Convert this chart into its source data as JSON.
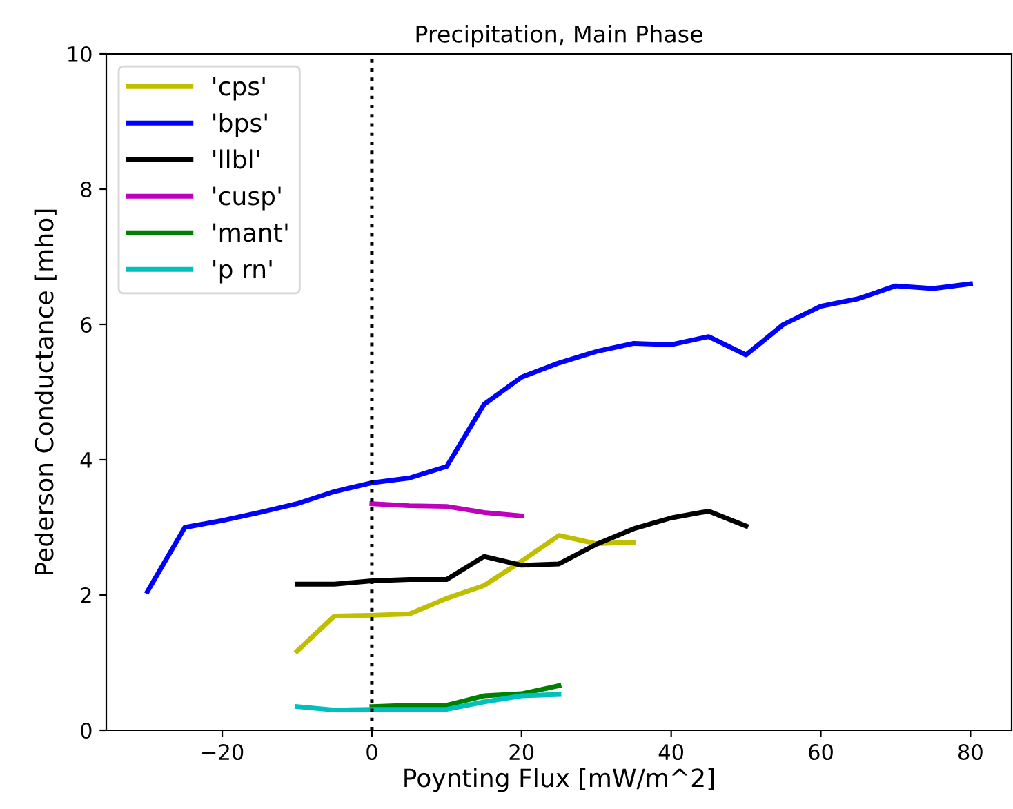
{
  "chart_data": {
    "type": "line",
    "title": "Precipitation, Main Phase",
    "xlabel": "Poynting Flux [mW/m^2]",
    "ylabel": "Pederson Conductance [mho]",
    "xlim": [
      -35.5,
      85.5
    ],
    "ylim": [
      0,
      10
    ],
    "xticks": [
      {
        "value": -20,
        "label": "−20"
      },
      0,
      20,
      40,
      60,
      80
    ],
    "yticks": [
      0,
      2,
      4,
      6,
      8,
      10
    ],
    "grid": false,
    "legend": "top left",
    "line_style": "solid",
    "marker": "none",
    "ref_lines": [
      {
        "axis": "x",
        "value": 0,
        "color": "#000000",
        "line_style": "dotted"
      }
    ],
    "series": [
      {
        "name": "'cps'",
        "color": "#bfbf00",
        "x": [
          -10,
          -5,
          0,
          5,
          10,
          15,
          20,
          25,
          30,
          35
        ],
        "values": [
          1.17,
          1.69,
          1.7,
          1.72,
          1.95,
          2.14,
          2.5,
          2.88,
          2.76,
          2.78
        ]
      },
      {
        "name": "'bps'",
        "color": "#0000ff",
        "x": [
          -30,
          -25,
          -20,
          -15,
          -10,
          -5,
          0,
          5,
          10,
          15,
          20,
          25,
          30,
          35,
          40,
          45,
          50,
          55,
          60,
          65,
          70,
          75,
          80
        ],
        "values": [
          2.05,
          3.0,
          3.1,
          3.22,
          3.35,
          3.53,
          3.66,
          3.73,
          3.9,
          4.82,
          5.22,
          5.43,
          5.6,
          5.72,
          5.7,
          5.82,
          5.55,
          6.0,
          6.27,
          6.38,
          6.57,
          6.53,
          6.6
        ]
      },
      {
        "name": "'llbl'",
        "color": "#000000",
        "x": [
          -10,
          -5,
          0,
          5,
          10,
          15,
          20,
          25,
          30,
          35,
          40,
          45,
          50
        ],
        "values": [
          2.16,
          2.16,
          2.21,
          2.23,
          2.23,
          2.57,
          2.44,
          2.46,
          2.75,
          2.98,
          3.14,
          3.24,
          3.02
        ]
      },
      {
        "name": "'cusp'",
        "color": "#bf00bf",
        "x": [
          0,
          5,
          10,
          15,
          20
        ],
        "values": [
          3.35,
          3.32,
          3.31,
          3.22,
          3.17
        ]
      },
      {
        "name": "'mant'",
        "color": "#008000",
        "x": [
          0,
          5,
          10,
          15,
          20,
          25
        ],
        "values": [
          0.35,
          0.37,
          0.37,
          0.51,
          0.54,
          0.66
        ]
      },
      {
        "name": "'p rn'",
        "color": "#00bfbf",
        "x": [
          -10,
          -5,
          0,
          5,
          10,
          15,
          20,
          25
        ],
        "values": [
          0.35,
          0.3,
          0.31,
          0.31,
          0.31,
          0.42,
          0.51,
          0.53
        ]
      }
    ]
  }
}
